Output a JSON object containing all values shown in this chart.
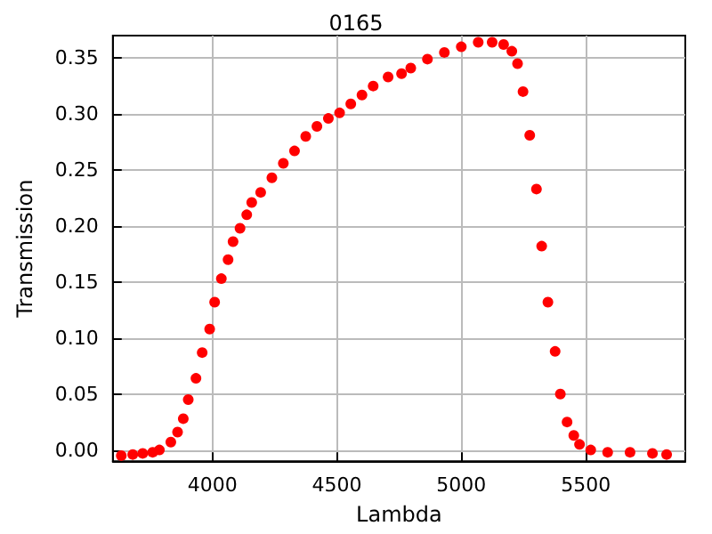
{
  "chart_data": {
    "type": "scatter",
    "title": "0165",
    "xlabel": "Lambda",
    "ylabel": "Transmission",
    "x": [
      3634,
      3680,
      3720,
      3760,
      3787,
      3833,
      3860,
      3883,
      3903,
      3934,
      3959,
      3989,
      4009,
      4036,
      4063,
      4083,
      4111,
      4138,
      4158,
      4194,
      4239,
      4285,
      4330,
      4375,
      4420,
      4466,
      4511,
      4556,
      4601,
      4646,
      4706,
      4760,
      4797,
      4864,
      4932,
      5000,
      5068,
      5124,
      5170,
      5203,
      5226,
      5248,
      5275,
      5302,
      5323,
      5348,
      5377,
      5398,
      5425,
      5452,
      5475,
      5520,
      5588,
      5678,
      5768,
      5825
    ],
    "series": [
      {
        "color": "#ff0000",
        "values": [
          -0.005,
          -0.004,
          -0.003,
          -0.002,
          0.0,
          0.007,
          0.016,
          0.028,
          0.045,
          0.064,
          0.087,
          0.108,
          0.132,
          0.153,
          0.17,
          0.186,
          0.198,
          0.21,
          0.221,
          0.23,
          0.243,
          0.256,
          0.267,
          0.28,
          0.289,
          0.296,
          0.301,
          0.309,
          0.317,
          0.325,
          0.333,
          0.336,
          0.341,
          0.349,
          0.355,
          0.36,
          0.364,
          0.364,
          0.362,
          0.356,
          0.345,
          0.32,
          0.281,
          0.233,
          0.182,
          0.132,
          0.088,
          0.05,
          0.025,
          0.013,
          0.005,
          0.0,
          -0.002,
          -0.002,
          -0.003,
          -0.004
        ]
      }
    ],
    "xlim": [
      3600,
      5900
    ],
    "xticks": [
      4000,
      4500,
      5000,
      5500
    ],
    "ylim": [
      -0.01,
      0.37
    ],
    "yticks": [
      {
        "value": 0,
        "label": "0.00"
      },
      {
        "value": 0.05,
        "label": "0.05"
      },
      {
        "value": 0.1,
        "label": "0.10"
      },
      {
        "value": 0.15,
        "label": "0.15"
      },
      {
        "value": 0.2,
        "label": "0.20"
      },
      {
        "value": 0.25,
        "label": "0.25"
      },
      {
        "value": 0.3,
        "label": "0.30"
      },
      {
        "value": 0.35,
        "label": "0.35"
      }
    ],
    "grid": true,
    "marker": "circle"
  }
}
